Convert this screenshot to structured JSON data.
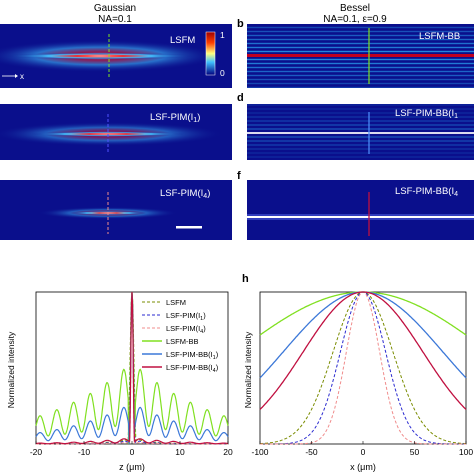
{
  "headers": {
    "left_title": "Gaussian",
    "left_sub": "NA=0.1",
    "right_title": "Bessel",
    "right_sub": "NA=0.1, ε=0.9"
  },
  "letters": {
    "b": "b",
    "d": "d",
    "f": "f",
    "h": "h"
  },
  "panels": {
    "a": {
      "label": "LSFM",
      "colorbar_max": "1",
      "colorbar_min": "0",
      "axis_x": "x"
    },
    "b": {
      "label": "LSFM-BB"
    },
    "c": {
      "label": "LSF-PIM(I",
      "sub": "1",
      "end": ")"
    },
    "d": {
      "label": "LSF-PIM-BB(I",
      "sub": "1"
    },
    "e": {
      "label": "LSF-PIM(I",
      "sub": "4",
      "end": ")"
    },
    "f": {
      "label": "LSF-PIM-BB(I",
      "sub": "4"
    }
  },
  "colors": {
    "background_blue": "#0a0f8c",
    "lsfm": "#7a8c00",
    "lsf_pim_i1": "#2a2ad0",
    "lsf_pim_i4": "#f08c8c",
    "lsfm_bb": "#80e020",
    "lsf_pim_bb_i1": "#3c78d8",
    "lsf_pim_bb_i4": "#c01040"
  },
  "chart_data": [
    {
      "type": "line",
      "panel": "g",
      "xlabel": "z (μm)",
      "ylabel": "Normalized intensity",
      "xlim": [
        -20,
        20
      ],
      "ylim": [
        0,
        1
      ],
      "xticks": [
        "-20",
        "-10",
        "0",
        "10",
        "20"
      ],
      "legend_placement": "top-right",
      "series": [
        {
          "name": "LSFM",
          "sub": "",
          "dash": true
        },
        {
          "name": "LSF-PIM(I",
          "sub": "1",
          "dash": true
        },
        {
          "name": "LSF-PIM(I",
          "sub": "4",
          "dash": true
        },
        {
          "name": "LSFM-BB",
          "sub": "",
          "dash": false
        },
        {
          "name": "LSF-PIM-BB(I",
          "sub": "1",
          "dash": false
        },
        {
          "name": "LSF-PIM-BB(I",
          "sub": "4",
          "dash": false
        }
      ],
      "envelopes": {
        "lsfm": {
          "width_um": 0.9,
          "side_amp": 0.03
        },
        "lsf_pim_i1": {
          "width_um": 0.7,
          "side_amp": 0.02
        },
        "lsf_pim_i4": {
          "width_um": 0.5,
          "side_amp": 0.01
        },
        "lsfm_bb": {
          "width_um": 0.7,
          "side_amp": 0.4,
          "decay_um": 18
        },
        "lsf_pim_bb_i1": {
          "width_um": 0.6,
          "side_amp": 0.2,
          "decay_um": 15
        },
        "lsf_pim_bb_i4": {
          "width_um": 0.55,
          "side_amp": 0.03,
          "decay_um": 10
        }
      }
    },
    {
      "type": "line",
      "panel": "h",
      "xlabel": "x (μm)",
      "ylabel": "Normalized intensity",
      "xlim": [
        -100,
        100
      ],
      "ylim": [
        0,
        1
      ],
      "xticks": [
        "-100",
        "-50",
        "0",
        "50",
        "100"
      ],
      "widths_um": {
        "lsfm": 45,
        "lsf_pim_i1": 34,
        "lsf_pim_i4": 25,
        "lsfm_bb": 190,
        "lsf_pim_bb_i1": 120,
        "lsf_pim_bb_i4": 90
      }
    }
  ]
}
